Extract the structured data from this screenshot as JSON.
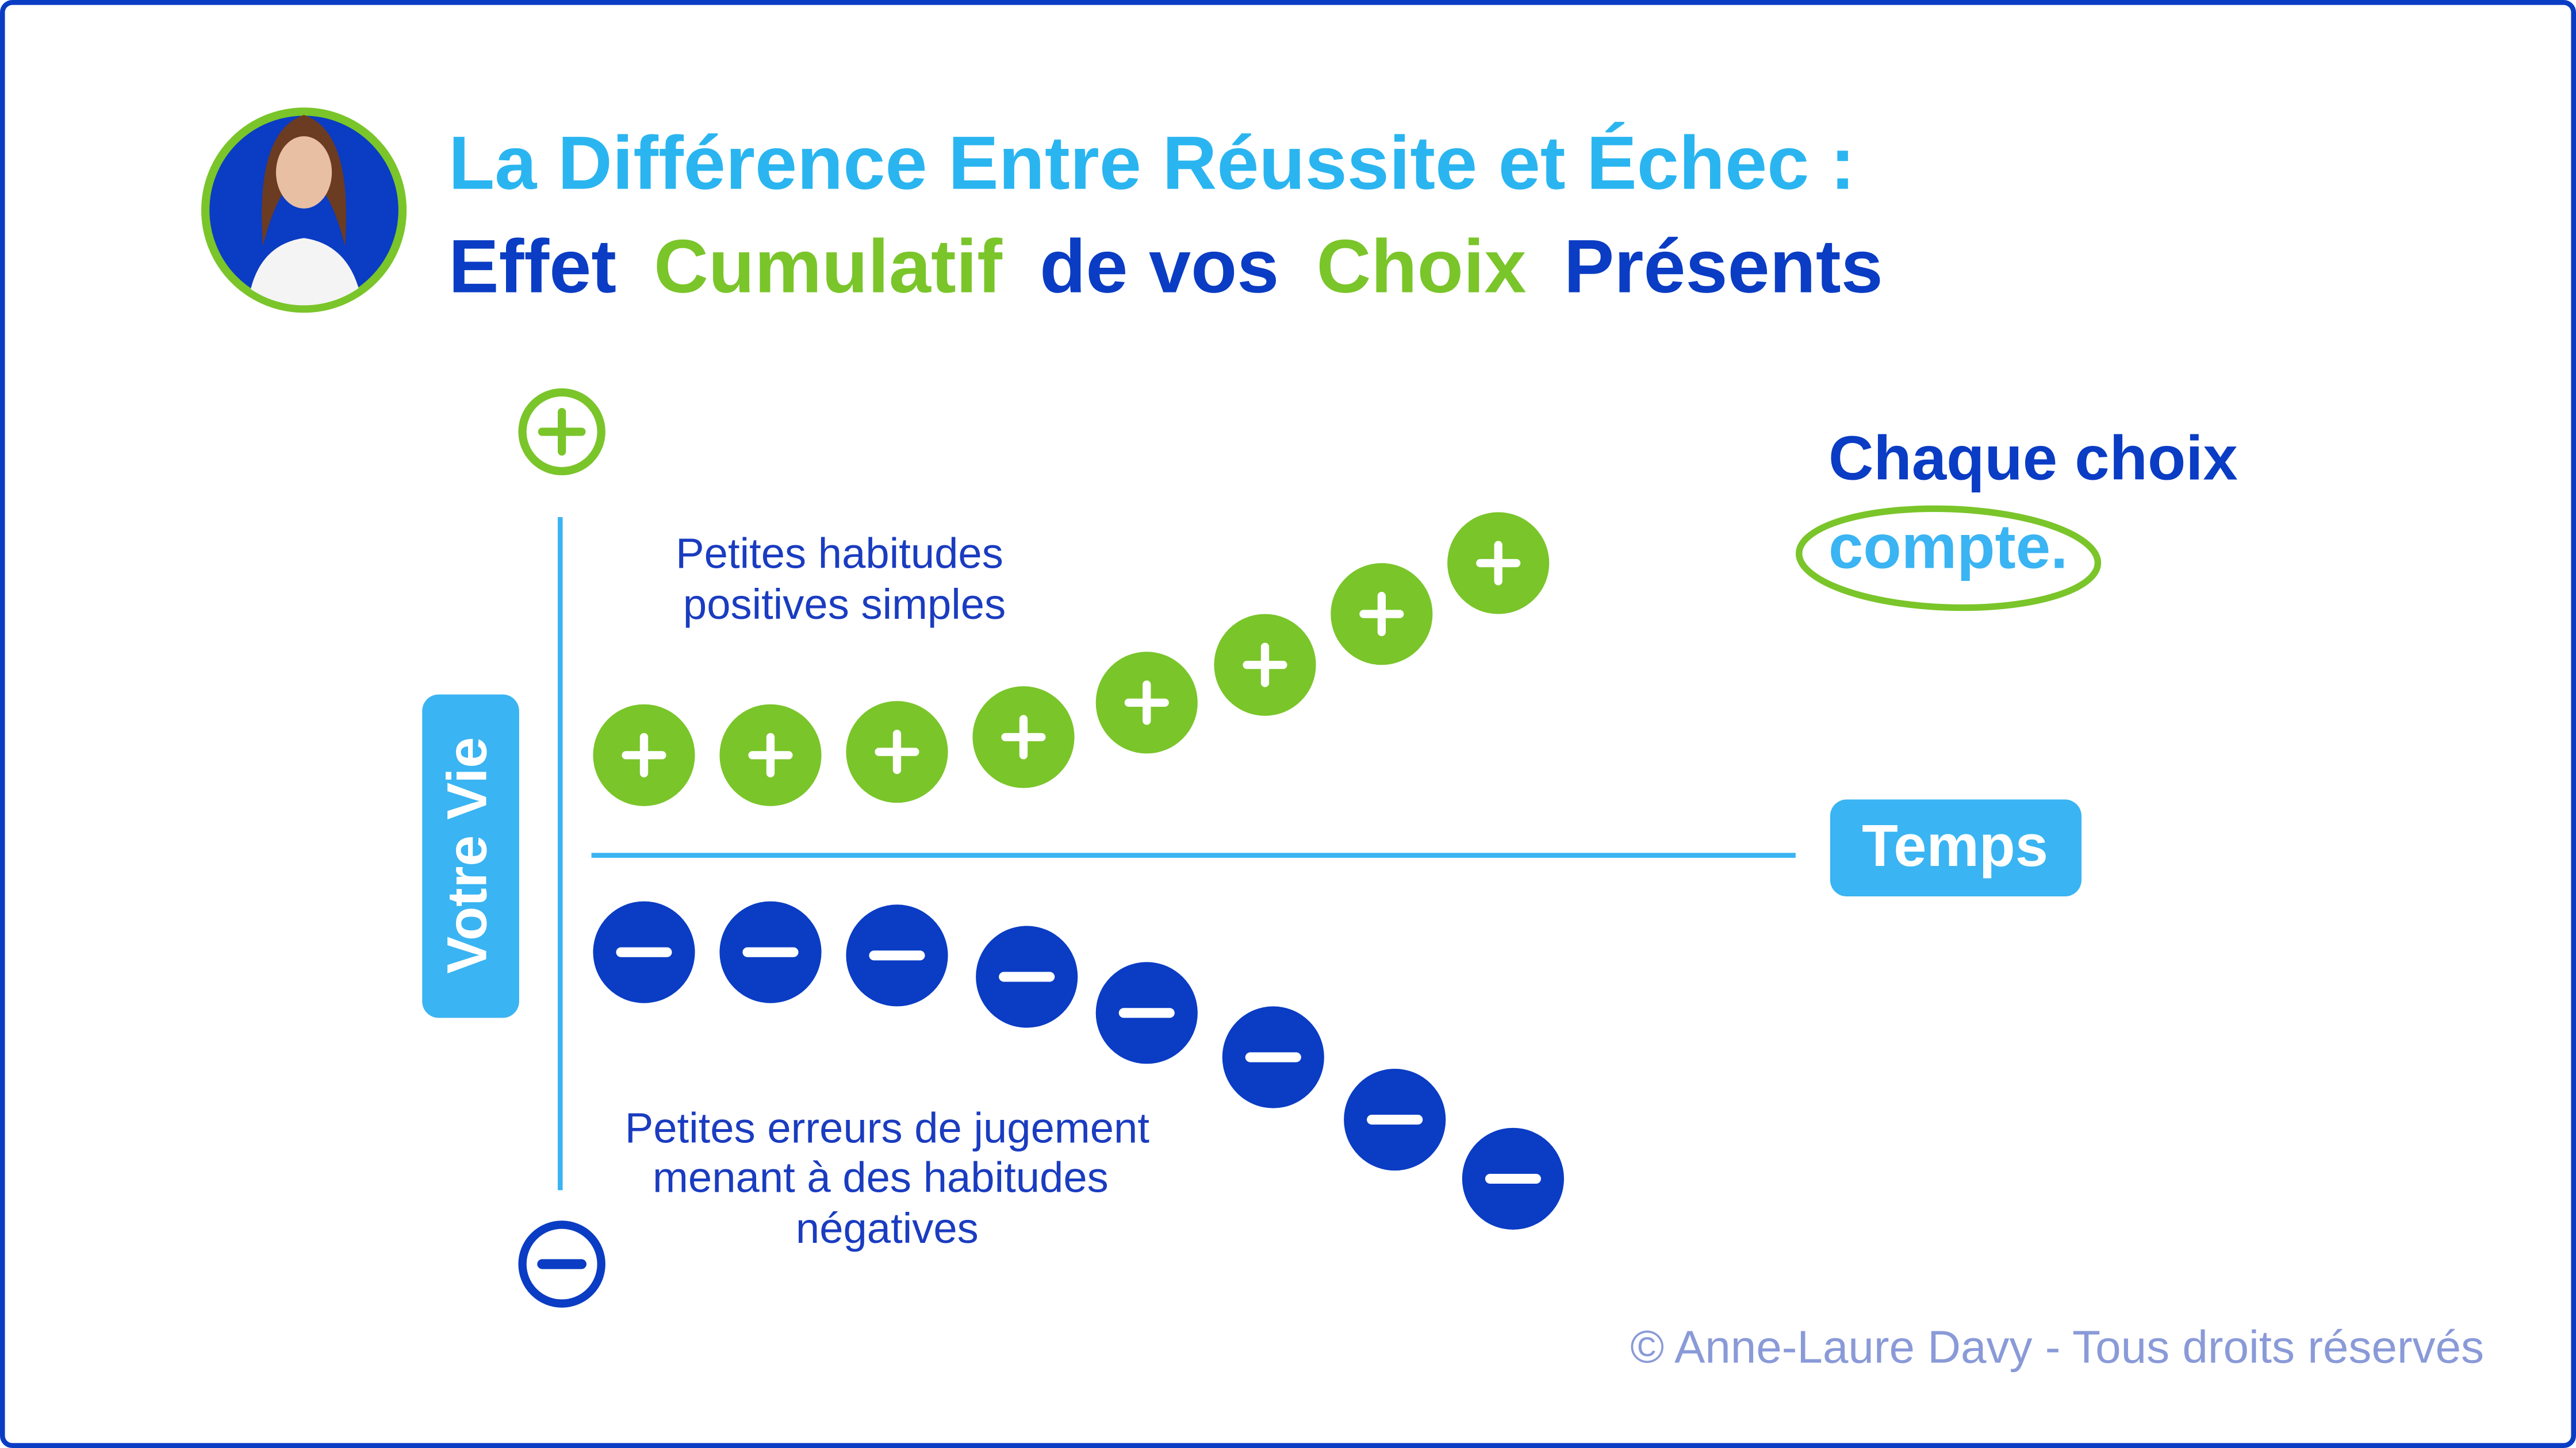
{
  "title": {
    "line1": "La Différence Entre Réussite et Échec :",
    "line2": [
      "Effet",
      "Cumulatif",
      "de vos",
      "Choix",
      "Présents"
    ]
  },
  "axis": {
    "y_label": "Votre Vie",
    "x_label": "Temps"
  },
  "positive_label": [
    "Petites habitudes",
    "positives simples"
  ],
  "negative_label": [
    "Petites erreurs de jugement",
    "menant à des habitudes",
    "négatives"
  ],
  "callout": {
    "line1": "Chaque choix",
    "line2": "compte."
  },
  "footer": "© Anne-Laure Davy - Tous droits réservés"
}
